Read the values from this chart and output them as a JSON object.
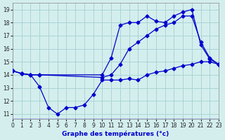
{
  "title": "Graphe des températures (°c)",
  "bg_color": "#d4eeee",
  "grid_color": "#aad4d4",
  "line_color": "#0000cc",
  "series": [
    {
      "x": [
        0,
        1,
        2,
        3,
        4,
        5,
        6,
        7,
        8,
        9,
        10,
        11,
        12,
        13,
        14,
        15,
        16,
        17,
        18,
        19,
        20,
        21,
        22,
        23
      ],
      "y": [
        14.3,
        14.1,
        14.0,
        13.1,
        11.5,
        11.0,
        11.5,
        11.5,
        11.7,
        12.5,
        13.6,
        13.6,
        13.6,
        13.7,
        13.6,
        14.0,
        14.2,
        14.3,
        14.5,
        14.7,
        14.8,
        15.0,
        15.0,
        14.8
      ]
    },
    {
      "x": [
        0,
        1,
        2,
        3,
        10,
        11,
        12,
        13,
        14,
        15,
        16,
        17,
        18,
        19,
        20,
        21,
        22,
        23
      ],
      "y": [
        14.3,
        14.1,
        14.0,
        14.0,
        13.8,
        14.0,
        14.8,
        16.0,
        16.5,
        17.0,
        17.5,
        17.8,
        18.0,
        18.5,
        18.5,
        16.5,
        15.3,
        14.8
      ]
    },
    {
      "x": [
        0,
        1,
        2,
        3,
        10,
        11,
        12,
        13,
        14,
        15,
        16,
        17,
        18,
        19,
        20,
        21,
        22,
        23
      ],
      "y": [
        14.3,
        14.1,
        14.0,
        14.0,
        14.0,
        15.3,
        17.8,
        18.0,
        18.0,
        18.5,
        18.1,
        18.0,
        18.5,
        18.8,
        19.0,
        16.3,
        15.2,
        14.8
      ]
    }
  ],
  "xlim": [
    0,
    23
  ],
  "ylim": [
    10.6,
    19.5
  ],
  "xtick_labels": [
    "0",
    "1",
    "2",
    "3",
    "4",
    "5",
    "6",
    "7",
    "8",
    "9",
    "10",
    "11",
    "12",
    "13",
    "14",
    "15",
    "16",
    "17",
    "18",
    "19",
    "20",
    "21",
    "22",
    "23"
  ],
  "xticks": [
    0,
    1,
    2,
    3,
    4,
    5,
    6,
    7,
    8,
    9,
    10,
    11,
    12,
    13,
    14,
    15,
    16,
    17,
    18,
    19,
    20,
    21,
    22,
    23
  ],
  "yticks": [
    11,
    12,
    13,
    14,
    15,
    16,
    17,
    18,
    19
  ],
  "marker": "D",
  "markersize": 2.5,
  "linewidth": 0.9
}
